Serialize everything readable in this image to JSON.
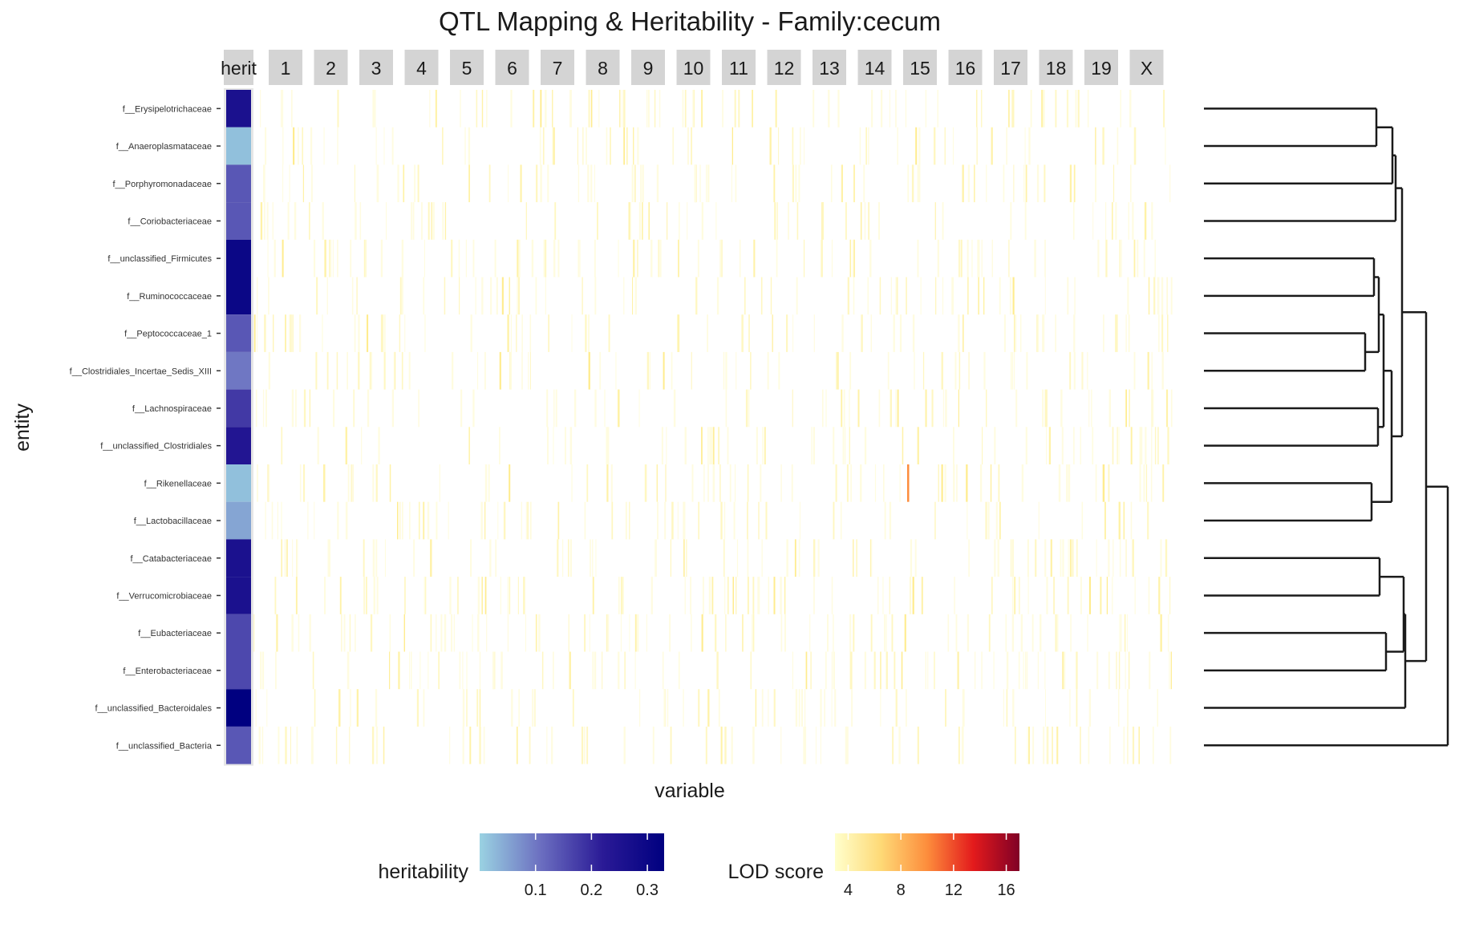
{
  "chart_data": {
    "type": "heatmap",
    "title": "QTL Mapping & Heritability - Family:cecum",
    "xlabel": "variable",
    "ylabel": "entity",
    "panels": [
      "herit",
      "1",
      "2",
      "3",
      "4",
      "5",
      "6",
      "7",
      "8",
      "9",
      "10",
      "11",
      "12",
      "13",
      "14",
      "15",
      "16",
      "17",
      "18",
      "19",
      "X"
    ],
    "entities": [
      "f__Erysipelotrichaceae",
      "f__Anaeroplasmataceae",
      "f__Porphyromonadaceae",
      "f__Coriobacteriaceae",
      "f__unclassified_Firmicutes",
      "f__Ruminococcaceae",
      "f__Peptococcaceae_1",
      "f__Clostridiales_Incertae_Sedis_XIII",
      "f__Lachnospiraceae",
      "f__unclassified_Clostridiales",
      "f__Rikenellaceae",
      "f__Lactobacillaceae",
      "f__Catabacteriaceae",
      "f__Verrucomicrobiaceae",
      "f__Eubacteriaceae",
      "f__Enterobacteriaceae",
      "f__unclassified_Bacteroidales",
      "f__unclassified_Bacteria"
    ],
    "heritability": [
      0.26,
      0.02,
      0.14,
      0.14,
      0.3,
      0.3,
      0.14,
      0.1,
      0.18,
      0.24,
      0.02,
      0.05,
      0.26,
      0.26,
      0.16,
      0.16,
      0.33,
      0.14
    ],
    "lod_highlights": [
      {
        "entity": "f__Rikenellaceae",
        "chromosome": "15",
        "lod": 10
      }
    ],
    "legends": [
      {
        "title": "heritability",
        "ticks": [
          "0.1",
          "0.2",
          "0.3"
        ],
        "tick_values": [
          0.1,
          0.2,
          0.3
        ],
        "range": [
          0.0,
          0.33
        ],
        "colors": [
          "#9ad2e2",
          "#6b6ec0",
          "#2a1a96",
          "#000080"
        ]
      },
      {
        "title": "LOD score",
        "ticks": [
          "4",
          "8",
          "12",
          "16"
        ],
        "tick_values": [
          4,
          8,
          12,
          16
        ],
        "range": [
          3,
          17
        ],
        "colors": [
          "#ffffcc",
          "#fed976",
          "#fd8d3c",
          "#e31a1c",
          "#800026"
        ]
      }
    ],
    "dendrogram_position": "right",
    "grid": false
  }
}
